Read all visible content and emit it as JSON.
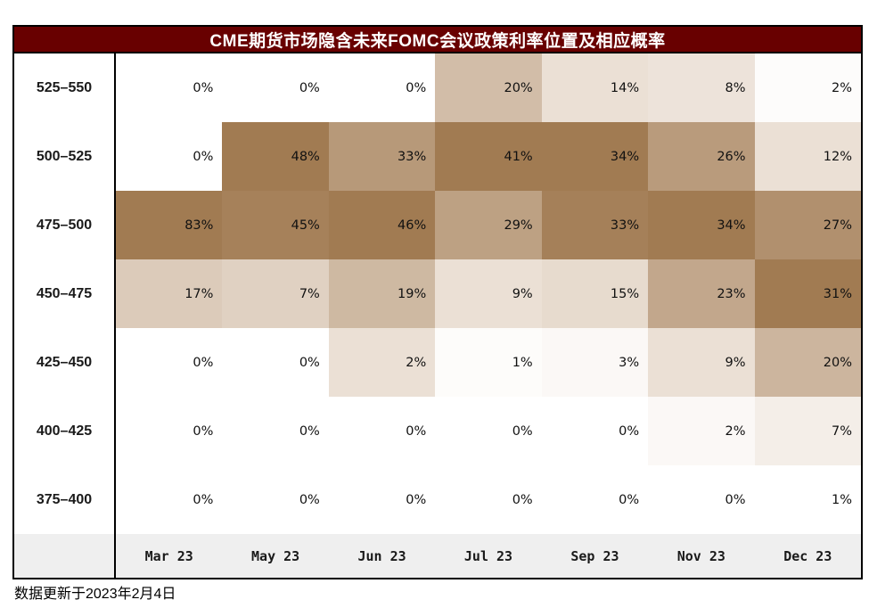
{
  "title": "CME期货市场隐含未来FOMC会议政策利率位置及相应概率",
  "footer_note": "数据更新于2023年2月4日",
  "colors": {
    "title_bg": "#680000",
    "title_text": "#FFFFFF",
    "header_row_bg": "#EFEFEF",
    "border": "#000000",
    "heat_min": "#FFFFFF",
    "heat_mid": "#EBE0D5",
    "heat_max": "#A17B52"
  },
  "chart_data": {
    "type": "heatmap",
    "title": "CME期货市场隐含未来FOMC会议政策利率位置及相应概率",
    "ylabel": "",
    "xlabel": "",
    "rows": [
      "525–550",
      "500–525",
      "475–500",
      "450–475",
      "425–450",
      "400–425",
      "375–400"
    ],
    "columns": [
      "Mar 23",
      "May 23",
      "Jun 23",
      "Jul 23",
      "Sep 23",
      "Nov 23",
      "Dec 23"
    ],
    "values": [
      [
        0,
        0,
        0,
        20,
        14,
        8,
        2
      ],
      [
        0,
        48,
        33,
        41,
        34,
        26,
        12
      ],
      [
        83,
        45,
        46,
        29,
        33,
        34,
        27
      ],
      [
        17,
        7,
        19,
        9,
        15,
        23,
        31
      ],
      [
        0,
        0,
        2,
        1,
        3,
        9,
        20
      ],
      [
        0,
        0,
        0,
        0,
        0,
        2,
        7
      ],
      [
        0,
        0,
        0,
        0,
        0,
        0,
        1
      ]
    ],
    "value_format": "percent",
    "color_scale": {
      "mode": "per-column: min -> median -> max",
      "min_color": "#FFFFFF",
      "mid_color": "#EBE0D5",
      "max_color": "#A17B52"
    },
    "legend": "none",
    "grid": "off"
  }
}
